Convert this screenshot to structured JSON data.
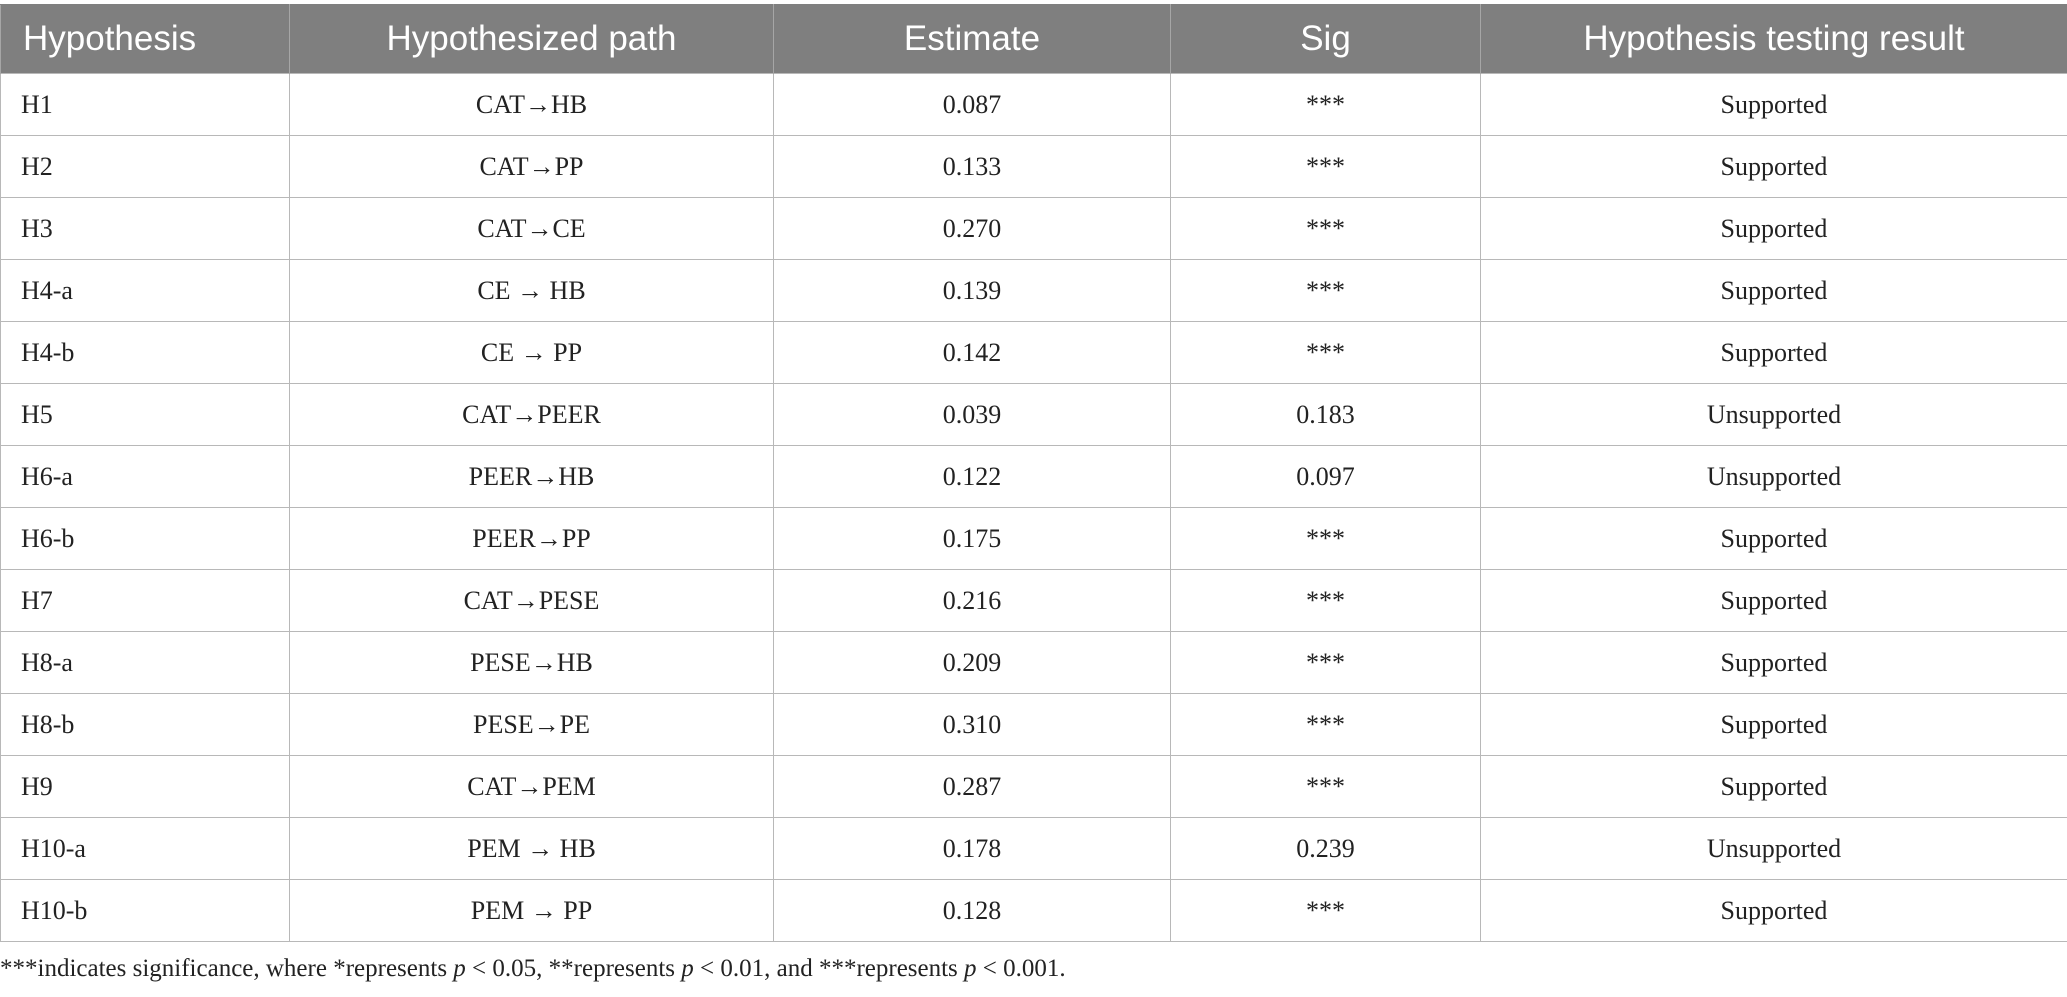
{
  "table": {
    "headers": [
      "Hypothesis",
      "Hypothesized path",
      "Estimate",
      "Sig",
      "Hypothesis testing result"
    ],
    "rows": [
      [
        "H1",
        "CAT→HB",
        "0.087",
        "***",
        "Supported"
      ],
      [
        "H2",
        "CAT→PP",
        "0.133",
        "***",
        "Supported"
      ],
      [
        "H3",
        "CAT→CE",
        "0.270",
        "***",
        "Supported"
      ],
      [
        "H4-a",
        "CE → HB",
        "0.139",
        "***",
        "Supported"
      ],
      [
        "H4-b",
        "CE → PP",
        "0.142",
        "***",
        "Supported"
      ],
      [
        "H5",
        "CAT→PEER",
        "0.039",
        "0.183",
        "Unsupported"
      ],
      [
        "H6-a",
        "PEER→HB",
        "0.122",
        "0.097",
        "Unsupported"
      ],
      [
        "H6-b",
        "PEER→PP",
        "0.175",
        "***",
        "Supported"
      ],
      [
        "H7",
        "CAT→PESE",
        "0.216",
        "***",
        "Supported"
      ],
      [
        "H8-a",
        "PESE→HB",
        "0.209",
        "***",
        "Supported"
      ],
      [
        "H8-b",
        "PESE→PE",
        "0.310",
        "***",
        "Supported"
      ],
      [
        "H9",
        "CAT→PEM",
        "0.287",
        "***",
        "Supported"
      ],
      [
        "H10-a",
        "PEM → HB",
        "0.178",
        "0.239",
        "Unsupported"
      ],
      [
        "H10-b",
        "PEM → PP",
        "0.128",
        "***",
        "Supported"
      ]
    ]
  },
  "footnote": {
    "part1": "***indicates significance, where *represents ",
    "p1": "p",
    "part2": " < 0.05, **represents ",
    "p2": "p",
    "part3": " < 0.01, and ***represents ",
    "p3": "p",
    "part4": " < 0.001."
  }
}
